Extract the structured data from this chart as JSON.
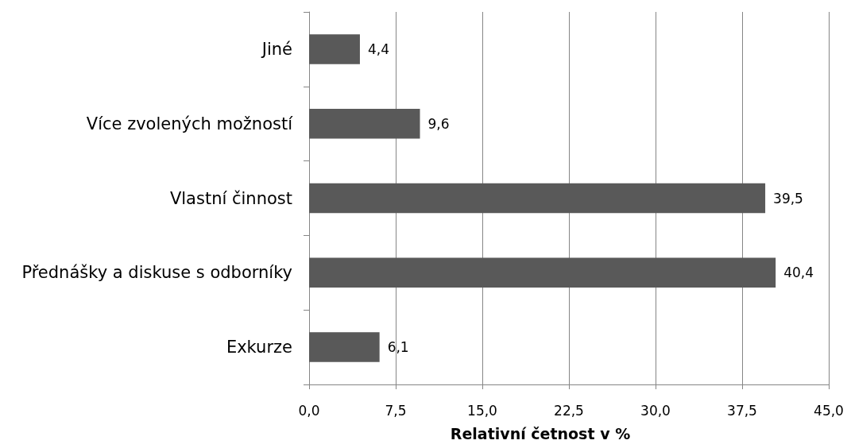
{
  "chart_data": {
    "type": "bar",
    "orientation": "horizontal",
    "categories": [
      "Jiné",
      "Více zvolených možností",
      "Vlastní činnost",
      "Přednášky a diskuse s odborníky",
      "Exkurze"
    ],
    "values": [
      4.4,
      9.6,
      39.5,
      40.4,
      6.1
    ],
    "value_labels": [
      "4,4",
      "9,6",
      "39,5",
      "40,4",
      "6,1"
    ],
    "color": "#595959",
    "xlabel": "Relativní četnost v %",
    "xlim": [
      0,
      45
    ],
    "xticks": [
      {
        "value": 0,
        "label": "0,0"
      },
      {
        "value": 7.5,
        "label": "7,5"
      },
      {
        "value": 15,
        "label": "15,0"
      },
      {
        "value": 22.5,
        "label": "22,5"
      },
      {
        "value": 30,
        "label": "30,0"
      },
      {
        "value": 37.5,
        "label": "37,5"
      },
      {
        "value": 45,
        "label": "45,0"
      }
    ],
    "grid": "x"
  }
}
